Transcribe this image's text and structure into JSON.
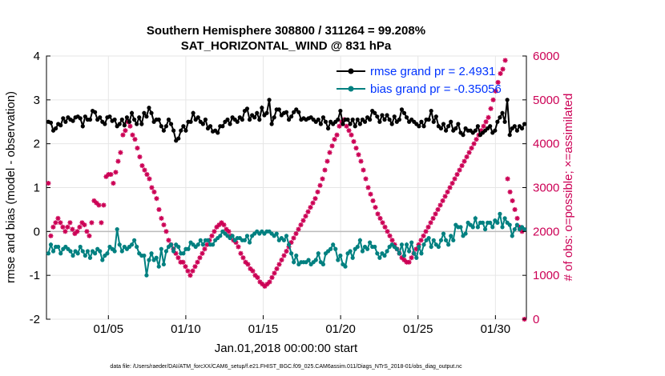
{
  "chart_data": {
    "type": "line",
    "title_line1": "Southern Hemisphere 308800 / 311264 = 99.208%",
    "title_line2": "SAT_HORIZONTAL_WIND @ 831 hPa",
    "xlabel": "Jan.01,2018 00:00:00 start",
    "ylabel_left": "rmse and bias (model - observation)",
    "ylabel_right": "# of obs: o=possible; ×=assimilated",
    "footnote": "data file: /Users/raeder/DAI/ATM_forcXX/CAM6_setup/f.e21.FHIST_BGC.f09_025.CAM6assim.011/Diags_NTrS_2018-01/obs_diag_output.nc",
    "xlim": [
      1,
      32
    ],
    "ylim_left": [
      -2,
      4
    ],
    "ylim_right": [
      0,
      6000
    ],
    "x_ticks": [
      5,
      10,
      15,
      20,
      25,
      30
    ],
    "x_tick_labels": [
      "01/05",
      "01/10",
      "01/15",
      "01/20",
      "01/25",
      "01/30"
    ],
    "y_ticks_left": [
      -2,
      -1,
      0,
      1,
      2,
      3,
      4
    ],
    "y_ticks_right": [
      0,
      1000,
      2000,
      3000,
      4000,
      5000,
      6000
    ],
    "legend": [
      {
        "label": "rmse grand pr = 2.4931",
        "color": "#000000"
      },
      {
        "label": "bias grand pr = -0.35056",
        "color": "#008080"
      }
    ],
    "series": [
      {
        "name": "rmse",
        "color": "#000000",
        "values": [
          2.5,
          2.48,
          2.3,
          2.35,
          2.45,
          2.42,
          2.58,
          2.5,
          2.6,
          2.55,
          2.52,
          2.6,
          2.62,
          2.58,
          2.4,
          2.62,
          2.55,
          2.55,
          2.75,
          2.72,
          2.55,
          2.6,
          2.5,
          2.45,
          2.6,
          2.62,
          2.52,
          2.55,
          2.4,
          2.45,
          2.55,
          2.42,
          2.6,
          2.5,
          2.7,
          2.55,
          2.45,
          2.6,
          2.45,
          2.7,
          2.62,
          2.82,
          2.7,
          2.5,
          2.55,
          2.55,
          2.4,
          2.3,
          2.4,
          2.55,
          2.45,
          2.3,
          2.07,
          2.12,
          2.3,
          2.4,
          2.3,
          2.5,
          2.5,
          2.7,
          2.55,
          2.6,
          2.5,
          2.45,
          2.55,
          2.35,
          2.4,
          2.28,
          2.3,
          2.25,
          2.4,
          2.4,
          2.5,
          2.55,
          2.45,
          2.6,
          2.55,
          2.5,
          2.6,
          2.55,
          2.75,
          2.8,
          2.55,
          2.65,
          2.6,
          2.7,
          2.55,
          2.82,
          2.65,
          2.7,
          3.0,
          2.45,
          2.6,
          2.78,
          2.78,
          2.65,
          2.7,
          2.72,
          2.55,
          2.62,
          2.72,
          2.78,
          2.72,
          2.55,
          2.58,
          2.55,
          2.58,
          2.6,
          2.55,
          2.5,
          2.55,
          2.45,
          2.6,
          2.5,
          2.35,
          2.5,
          2.45,
          2.5,
          2.55,
          2.75,
          2.45,
          2.55,
          2.55,
          2.45,
          2.55,
          2.4,
          2.55,
          2.45,
          2.55,
          2.5,
          2.6,
          2.55,
          2.75,
          2.7,
          2.62,
          2.5,
          2.65,
          2.55,
          2.65,
          2.55,
          2.45,
          2.62,
          2.5,
          2.55,
          2.78,
          2.7,
          2.6,
          2.5,
          2.55,
          2.5,
          2.45,
          2.4,
          2.5,
          2.4,
          2.55,
          2.55,
          2.75,
          2.5,
          2.62,
          2.4,
          2.35,
          2.45,
          2.3,
          2.4,
          2.5,
          2.3,
          2.35,
          2.45,
          2.25,
          2.2,
          2.35,
          2.3,
          2.3,
          2.25,
          2.3,
          2.4,
          2.2,
          2.25,
          2.3,
          2.35,
          2.4,
          2.25,
          2.3,
          2.5,
          2.6,
          2.7,
          2.5,
          3.0,
          2.2,
          2.35,
          2.4,
          2.3,
          2.4,
          2.35,
          2.45
        ]
      },
      {
        "name": "bias",
        "color": "#008080",
        "values": [
          -0.5,
          -0.3,
          -0.45,
          -0.35,
          -0.35,
          -0.5,
          -0.4,
          -0.35,
          -0.4,
          -0.45,
          -0.55,
          -0.45,
          -0.5,
          -0.35,
          -0.45,
          -0.55,
          -0.45,
          -0.6,
          -0.45,
          -0.5,
          -0.4,
          -0.45,
          -0.65,
          -0.55,
          -0.5,
          -0.35,
          -0.4,
          -0.45,
          0.05,
          -0.3,
          -0.45,
          -0.35,
          -0.4,
          -0.35,
          -0.3,
          -0.2,
          -0.35,
          -0.5,
          -0.55,
          -0.55,
          -1.0,
          -0.65,
          -0.5,
          -0.65,
          -0.6,
          -0.8,
          -0.4,
          -0.75,
          -0.45,
          -0.35,
          -0.3,
          -0.45,
          -0.3,
          -0.35,
          -0.5,
          -0.5,
          -0.4,
          -0.4,
          -0.25,
          -0.3,
          -0.35,
          -0.3,
          -0.2,
          -0.3,
          -0.2,
          -0.2,
          -0.3,
          -0.3,
          -0.2,
          -0.15,
          -0.1,
          0.0,
          -0.05,
          -0.1,
          -0.15,
          -0.1,
          -0.2,
          -0.15,
          -0.15,
          -0.2,
          -0.2,
          -0.1,
          -0.25,
          -0.1,
          -0.05,
          0.0,
          -0.05,
          0.0,
          -0.05,
          0.0,
          0.0,
          -0.05,
          -0.1,
          -0.05,
          -0.2,
          -0.15,
          -0.2,
          -0.1,
          -0.3,
          -0.5,
          -0.7,
          -0.55,
          -0.75,
          -0.7,
          -0.7,
          -0.7,
          -0.65,
          -0.75,
          -0.7,
          -0.65,
          -0.5,
          -0.7,
          -0.75,
          -0.5,
          -0.45,
          -0.4,
          -0.3,
          -0.4,
          -0.65,
          -0.55,
          -0.75,
          -0.8,
          -0.5,
          -0.45,
          -0.6,
          -0.4,
          -0.35,
          -0.2,
          -0.45,
          -0.35,
          -0.4,
          -0.25,
          -0.35,
          -0.35,
          -0.5,
          -0.6,
          -0.5,
          -0.55,
          -0.45,
          -0.35,
          -0.3,
          -0.35,
          -0.4,
          -0.5,
          -0.3,
          -0.55,
          -0.3,
          -0.45,
          -0.25,
          -0.5,
          -0.6,
          -0.35,
          -0.5,
          -0.3,
          -0.2,
          -0.15,
          -0.35,
          -0.2,
          -0.3,
          -0.35,
          -0.2,
          -0.05,
          -0.2,
          -0.3,
          -0.1,
          -0.2,
          0.15,
          0.1,
          0.1,
          -0.1,
          -0.05,
          0.2,
          0.15,
          0.1,
          0.3,
          0.1,
          0.2,
          0.2,
          0.05,
          0.2,
          0.2,
          0.1,
          0.25,
          0.2,
          0.4,
          0.1,
          0.3,
          0.2,
          0.15,
          -0.1,
          0.05,
          0.15,
          0.05,
          0.1,
          0.05
        ]
      },
      {
        "name": "obs_assimilated",
        "color": "#cc0055",
        "axis": "right",
        "values": [
          3100,
          1900,
          2100,
          2200,
          2300,
          2200,
          2100,
          2000,
          2100,
          2200,
          2050,
          1950,
          2000,
          2100,
          2200,
          2150,
          2000,
          1900,
          2200,
          2700,
          2650,
          2600,
          2200,
          2600,
          3250,
          3300,
          3300,
          3100,
          3350,
          3600,
          3800,
          4200,
          4300,
          4500,
          4400,
          4200,
          4100,
          3900,
          3700,
          3500,
          3400,
          3300,
          3200,
          3000,
          2900,
          2750,
          2500,
          2300,
          2150,
          2000,
          1800,
          1700,
          1600,
          1500,
          1400,
          1300,
          1300,
          1200,
          1100,
          1000,
          1100,
          1200,
          1300,
          1400,
          1500,
          1600,
          1700,
          1800,
          1900,
          2000,
          2100,
          2150,
          2200,
          2150,
          2050,
          2000,
          1900,
          1800,
          1750,
          1650,
          1500,
          1400,
          1300,
          1250,
          1150,
          1100,
          1000,
          950,
          850,
          800,
          750,
          800,
          850,
          950,
          1050,
          1150,
          1250,
          1350,
          1450,
          1550,
          1650,
          1750,
          1850,
          1950,
          2050,
          2150,
          2250,
          2350,
          2450,
          2550,
          2650,
          2750,
          2900,
          3050,
          3200,
          3400,
          3600,
          3800,
          3950,
          4100,
          4200,
          4400,
          4500,
          4550,
          4400,
          4300,
          4200,
          4050,
          3900,
          3750,
          3600,
          3400,
          3200,
          3000,
          2850,
          2700,
          2550,
          2400,
          2300,
          2200,
          2100,
          2000,
          1900,
          1800,
          1700,
          1600,
          1500,
          1400,
          1350,
          1300,
          1300,
          1400,
          1500,
          1600,
          1700,
          1800,
          1900,
          2000,
          2100,
          2200,
          2300,
          2400,
          2500,
          2600,
          2700,
          2800,
          2900,
          3000,
          3100,
          3200,
          3300,
          3400,
          3500,
          3600,
          3700,
          3800,
          3900,
          4000,
          4100,
          4200,
          4300,
          4400,
          4500,
          4600,
          4800,
          5000,
          5200,
          5400,
          5600,
          5700,
          5900,
          3200,
          2900,
          2700,
          2500,
          2300,
          2100,
          2000,
          0
        ]
      }
    ]
  }
}
